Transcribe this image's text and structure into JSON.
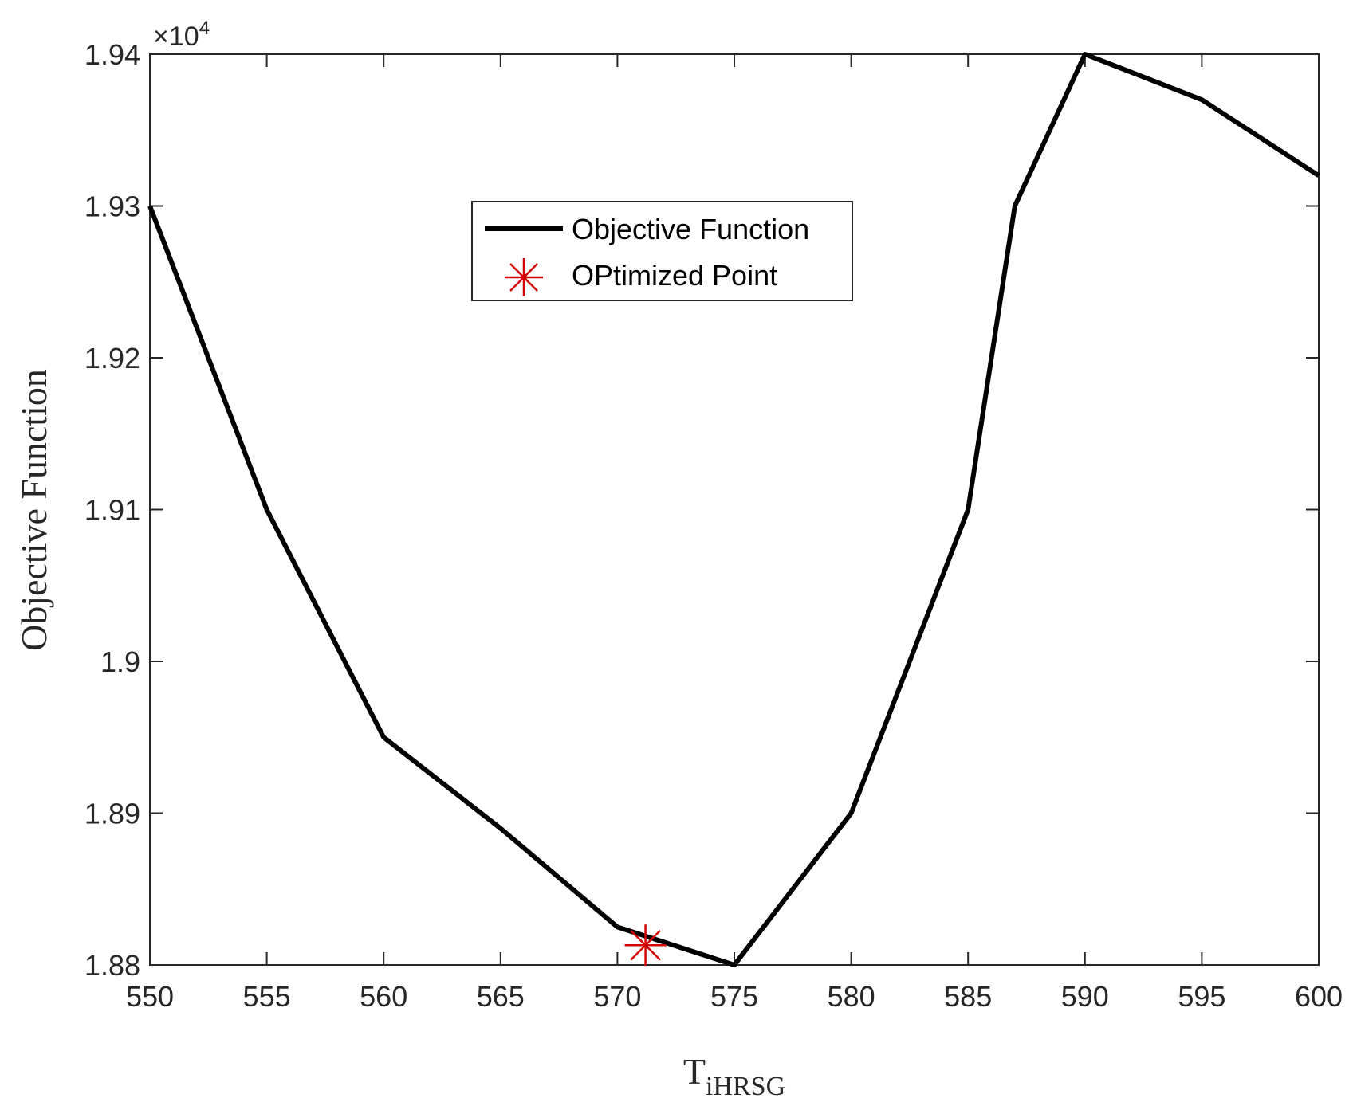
{
  "chart_data": {
    "type": "line",
    "xlabel": "T",
    "xlabel_subscript": "iHRSG",
    "ylabel": "Objective Function",
    "xlim": [
      550,
      600
    ],
    "ylim": [
      18800,
      19400
    ],
    "x_ticks": [
      550,
      555,
      560,
      565,
      570,
      575,
      580,
      585,
      590,
      595,
      600
    ],
    "x_tick_labels": [
      "550",
      "555",
      "560",
      "565",
      "570",
      "575",
      "580",
      "585",
      "590",
      "595",
      "600"
    ],
    "y_ticks": [
      18800,
      18900,
      19000,
      19100,
      19200,
      19300,
      19400
    ],
    "y_tick_labels": [
      "1.88",
      "1.89",
      "1.9",
      "1.91",
      "1.92",
      "1.93",
      "1.94"
    ],
    "y_exponent_base": "×10",
    "y_exponent_power": "4",
    "grid": false,
    "legend_position": "top-center",
    "series": [
      {
        "name": "Objective Function",
        "color": "#000000",
        "marker": "none",
        "x": [
          550,
          555,
          560,
          565,
          570,
          575,
          580,
          585,
          587,
          590,
          595,
          600
        ],
        "y": [
          19300,
          19100,
          18950,
          18890,
          18825,
          18800,
          18900,
          19100,
          19300,
          19400,
          19370,
          19320
        ]
      },
      {
        "name": "OPtimized Point",
        "color": "#d40000",
        "marker": "asterisk",
        "x": [
          571.2
        ],
        "y": [
          18813
        ]
      }
    ]
  }
}
